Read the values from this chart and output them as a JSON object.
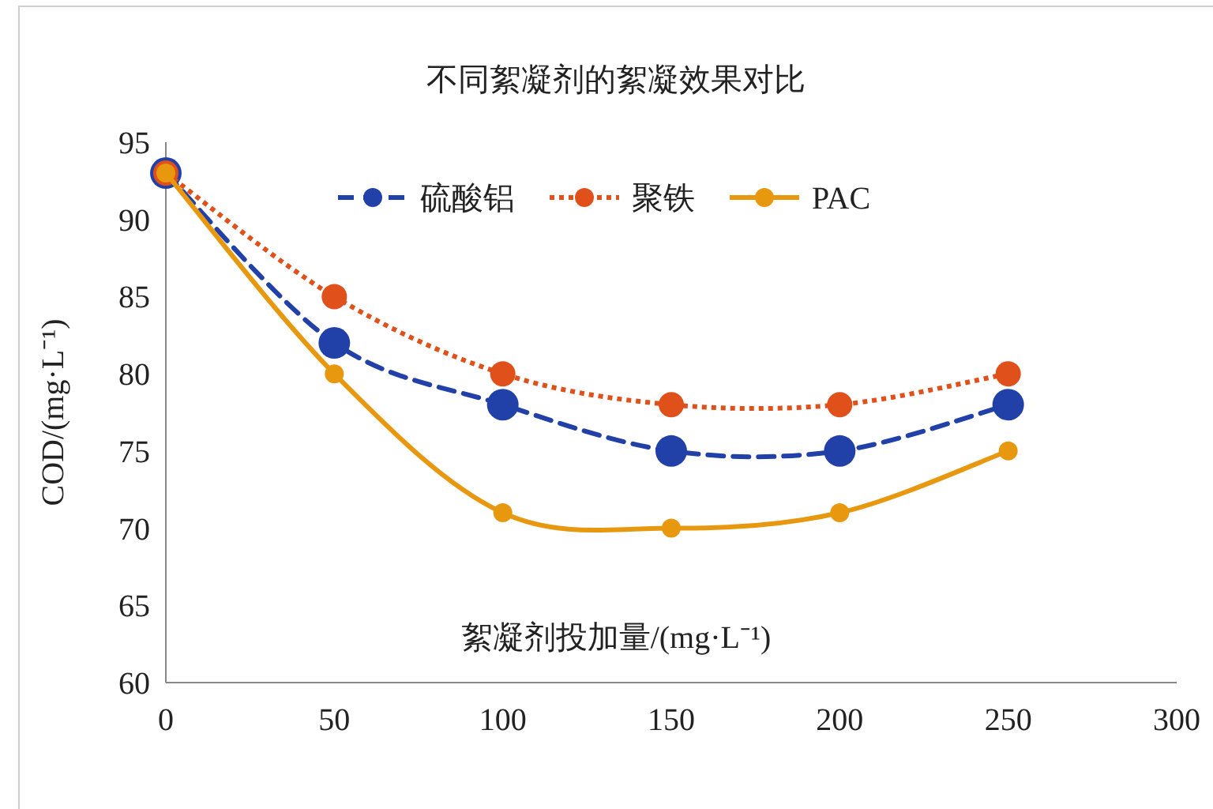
{
  "chart_data": {
    "type": "line",
    "title": "不同絮凝剂的絮凝效果对比",
    "xlabel": "絮凝剂投加量/(mg·L⁻¹)",
    "ylabel": "COD/(mg·L⁻¹)",
    "x": [
      0,
      50,
      100,
      150,
      200,
      250
    ],
    "series": [
      {
        "name": "硫酸铝",
        "color": "#2140a8",
        "line_style": "dashed",
        "values": [
          93,
          82,
          78,
          75,
          75,
          78
        ]
      },
      {
        "name": "聚铁",
        "color": "#e0501a",
        "line_style": "dotted",
        "values": [
          93,
          85,
          80,
          78,
          78,
          80
        ]
      },
      {
        "name": "PAC",
        "color": "#e8980e",
        "line_style": "solid",
        "values": [
          93,
          80,
          71,
          70,
          71,
          75
        ]
      }
    ],
    "marker": "circle",
    "legend": "top",
    "xlim": [
      0,
      300
    ],
    "ylim": [
      60,
      95
    ],
    "xticks": [
      0,
      50,
      100,
      150,
      200,
      250,
      300
    ],
    "yticks": [
      60,
      65,
      70,
      75,
      80,
      85,
      90,
      95
    ]
  }
}
